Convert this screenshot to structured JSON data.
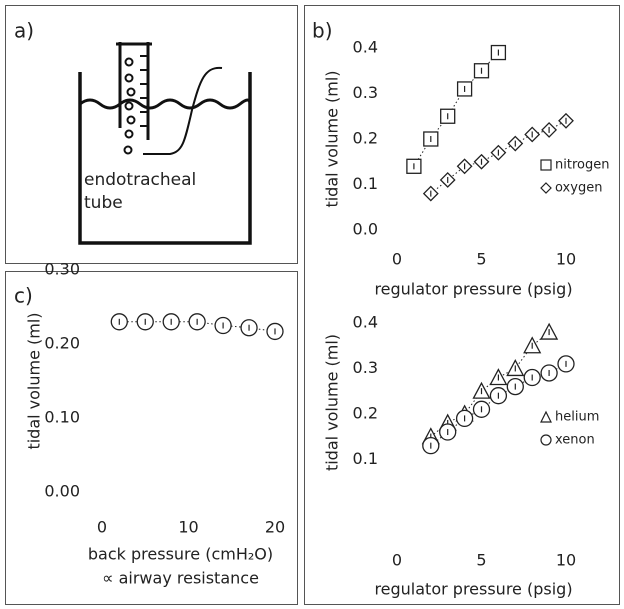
{
  "panel_labels": [
    "a)",
    "b)",
    "c)"
  ],
  "diagram": {
    "label_lines": [
      "endotracheal",
      "tube"
    ]
  },
  "chart_data": [
    {
      "type": "scatter",
      "ylabel": "tidal volume (ml)",
      "xlabel": "regulator pressure (psig)",
      "xlim": [
        0,
        10
      ],
      "xticks": [
        0,
        5,
        10
      ],
      "ylim": [
        0,
        0.4
      ],
      "yticks": [
        {
          "value": 0,
          "label": "0.0"
        },
        0.1,
        0.2,
        0.3,
        0.4
      ],
      "legend": "lower right",
      "series": [
        {
          "name": "nitrogen",
          "marker": "square",
          "color": "#222",
          "x": [
            1,
            2,
            3,
            4,
            5,
            6
          ],
          "values": [
            0.14,
            0.2,
            0.25,
            0.31,
            0.35,
            0.39
          ]
        },
        {
          "name": "oxygen",
          "marker": "diamond",
          "color": "#222",
          "x": [
            2,
            3,
            4,
            5,
            6,
            7,
            8,
            9,
            10
          ],
          "values": [
            0.08,
            0.11,
            0.14,
            0.15,
            0.17,
            0.19,
            0.21,
            0.22,
            0.24
          ]
        }
      ]
    },
    {
      "type": "scatter",
      "ylabel": "tidal volume (ml)",
      "xlabel": "regulator pressure (psig)",
      "xlim": [
        0,
        10
      ],
      "xticks": [
        0,
        5,
        10
      ],
      "ylim": [
        0.05,
        0.4
      ],
      "yticks": [
        0.1,
        0.2,
        0.3,
        0.4
      ],
      "legend": "lower right",
      "series": [
        {
          "name": "helium",
          "marker": "triangle",
          "color": "#222",
          "x": [
            2,
            3,
            4,
            5,
            6,
            7,
            8,
            9
          ],
          "values": [
            0.15,
            0.18,
            0.2,
            0.25,
            0.28,
            0.3,
            0.35,
            0.38
          ]
        },
        {
          "name": "xenon",
          "marker": "circle",
          "color": "#222",
          "x": [
            2,
            3,
            4,
            5,
            6,
            7,
            8,
            9,
            10
          ],
          "values": [
            0.13,
            0.16,
            0.19,
            0.21,
            0.24,
            0.26,
            0.28,
            0.29,
            0.31
          ]
        }
      ]
    },
    {
      "type": "scatter",
      "ylabel": "tidal volume (ml)",
      "xlabel": "back pressure (cmH₂O)",
      "xlabel2": "∝ airway resistance",
      "xlim": [
        0,
        20
      ],
      "xticks": [
        0,
        10,
        20
      ],
      "ylim": [
        0,
        0.3
      ],
      "yticks": [
        {
          "value": 0,
          "label": "0.00"
        },
        {
          "value": 0.1,
          "label": "0.10"
        },
        {
          "value": 0.2,
          "label": "0.20"
        },
        {
          "value": 0.3,
          "label": "0.30"
        }
      ],
      "series": [
        {
          "marker": "circle",
          "color": "#222",
          "x": [
            2,
            5,
            8,
            11,
            14,
            17,
            20
          ],
          "values": [
            0.23,
            0.23,
            0.23,
            0.23,
            0.225,
            0.222,
            0.217
          ]
        }
      ]
    }
  ]
}
